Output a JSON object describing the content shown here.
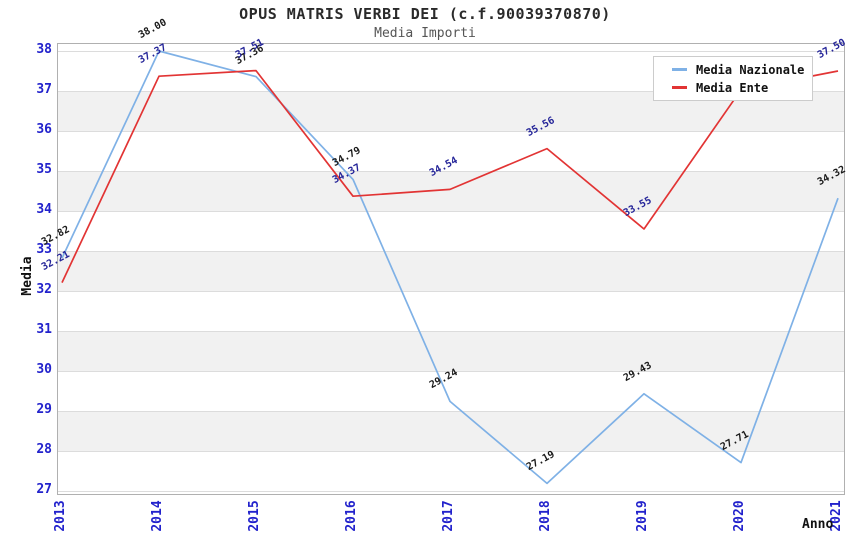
{
  "page": {
    "title": "OPUS MATRIS VERBI DEI (c.f.90039370870)",
    "subtitle": "Media Importi"
  },
  "chart_data": {
    "type": "line",
    "title": "OPUS MATRIS VERBI DEI (c.f.90039370870)",
    "subtitle": "Media Importi",
    "x": [
      "2013",
      "2014",
      "2015",
      "2016",
      "2017",
      "2018",
      "2019",
      "2020",
      "2021"
    ],
    "xlabel": "Anno",
    "ylabel": "Media",
    "ylim": [
      27,
      38
    ],
    "ytick_step": 1,
    "yticks": [
      38,
      37,
      36,
      35,
      34,
      33,
      32,
      31,
      30,
      29,
      28,
      27
    ],
    "grid": "horizontal-lines-with-alternating-bands",
    "legend_position": "top-right-inside",
    "series": [
      {
        "name": "Media Nazionale",
        "color": "#7fb1e6",
        "label_color": "#1a1a1a",
        "values": [
          32.82,
          38.0,
          37.36,
          34.79,
          29.24,
          27.19,
          29.43,
          27.71,
          34.32
        ],
        "point_labels": [
          "32.82",
          "38.00",
          "37.36",
          "34.79",
          "29.24",
          "27.19",
          "29.43",
          "27.71",
          "34.32"
        ]
      },
      {
        "name": "Media Ente",
        "color": "#e23434",
        "label_color": "#252599",
        "values": [
          32.21,
          37.37,
          37.51,
          34.37,
          34.54,
          35.56,
          33.55,
          37.03,
          37.5
        ],
        "point_labels": [
          "32.21",
          "37.37",
          "37.51",
          "34.37",
          "34.54",
          "35.56",
          "33.55",
          "",
          "37.50"
        ]
      }
    ],
    "styles": {
      "tick_color": "#2222cc",
      "band_color": "#f1f1f1",
      "grid_color": "#dcdcdc",
      "border_color": "#b0b0b0"
    }
  }
}
